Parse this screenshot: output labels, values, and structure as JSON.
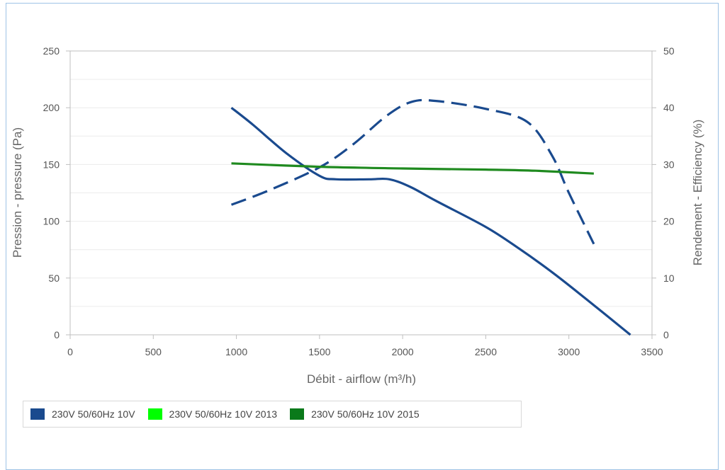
{
  "chart_data": {
    "type": "line",
    "xlabel": "Débit - airflow (m³/h)",
    "ylabel_left": "Pression - pressure (Pa)",
    "ylabel_right": "Rendement - Efficiency (%)",
    "xlim": [
      0,
      3500
    ],
    "ylim_left": [
      0,
      250
    ],
    "ylim_right": [
      0,
      50
    ],
    "x_ticks": [
      0,
      500,
      1000,
      1500,
      2000,
      2500,
      3000,
      3500
    ],
    "y_ticks_left": [
      0,
      50,
      100,
      150,
      200,
      250
    ],
    "y_ticks_right": [
      0,
      10,
      20,
      30,
      40,
      50
    ],
    "grid": true,
    "legend_position": "bottom-left",
    "legend": [
      {
        "label": "230V 50/60Hz 10V",
        "color": "#1a4a8e"
      },
      {
        "label": "230V 50/60Hz 10V 2013",
        "color": "#00ff00"
      },
      {
        "label": "230V 50/60Hz 10V 2015",
        "color": "#0a7a1a"
      }
    ],
    "series": [
      {
        "axis": "left",
        "style": "solid",
        "color": "#1a4a8e",
        "x": [
          970,
          1100,
          1300,
          1500,
          1600,
          1800,
          1920,
          2050,
          2200,
          2500,
          2700,
          2900,
          3100,
          3370
        ],
        "y": [
          200,
          185,
          160,
          140,
          137,
          137,
          137,
          130,
          118,
          95,
          76,
          55,
          32,
          0
        ]
      },
      {
        "axis": "right",
        "style": "dashed",
        "color": "#1a4a8e",
        "x": [
          970,
          1200,
          1500,
          1700,
          1900,
          2050,
          2200,
          2500,
          2750,
          2900,
          3000,
          3150
        ],
        "y": [
          22.9,
          25.5,
          29.5,
          33.5,
          38.5,
          41,
          41.2,
          39.8,
          37.5,
          31.5,
          25,
          16
        ]
      },
      {
        "axis": "right",
        "style": "solid",
        "color": "#1f8a1f",
        "x": [
          970,
          1500,
          2000,
          2500,
          2800,
          3150
        ],
        "y": [
          30.2,
          29.6,
          29.3,
          29.1,
          28.9,
          28.4
        ]
      }
    ]
  }
}
